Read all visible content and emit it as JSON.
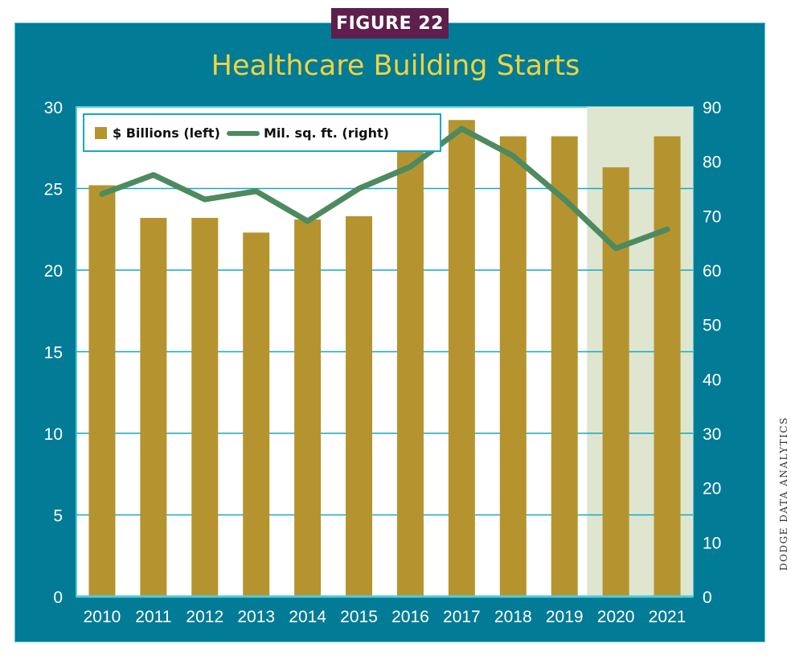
{
  "header": {
    "badge": "FIGURE 22",
    "title": "Healthcare Building Starts",
    "credit": "DODGE DATA ANALYTICS"
  },
  "colors": {
    "frame": "#017b96",
    "badge": "#5e1f4c",
    "title": "#f2d33e",
    "bar": "#b5942f",
    "line": "#4d8a5f",
    "forecast_shade": "#dfe6cf",
    "gridline": "#14a9c2"
  },
  "chart_data": {
    "type": "bar",
    "categories": [
      "2010",
      "2011",
      "2012",
      "2013",
      "2014",
      "2015",
      "2016",
      "2017",
      "2018",
      "2019",
      "2020",
      "2021"
    ],
    "series": [
      {
        "name": "$ Billions (left)",
        "type": "bar",
        "axis": "left",
        "values": [
          25.2,
          23.2,
          23.2,
          22.3,
          23.1,
          23.3,
          27.3,
          29.2,
          28.2,
          28.2,
          26.3,
          28.2
        ]
      },
      {
        "name": "Mil. sq. ft. (right)",
        "type": "line",
        "axis": "right",
        "values": [
          74,
          77.5,
          73,
          74.5,
          69,
          75,
          79,
          86,
          81,
          73,
          64,
          67.5
        ]
      }
    ],
    "y_left": {
      "min": 0,
      "max": 30,
      "ticks": [
        "0",
        "5",
        "10",
        "15",
        "20",
        "25",
        "30"
      ]
    },
    "y_right": {
      "min": 0,
      "max": 90,
      "ticks": [
        "0",
        "10",
        "20",
        "30",
        "40",
        "50",
        "60",
        "70",
        "80",
        "90"
      ]
    },
    "highlight_categories": [
      "2020",
      "2021"
    ],
    "grid": true,
    "legend": "top-left"
  }
}
